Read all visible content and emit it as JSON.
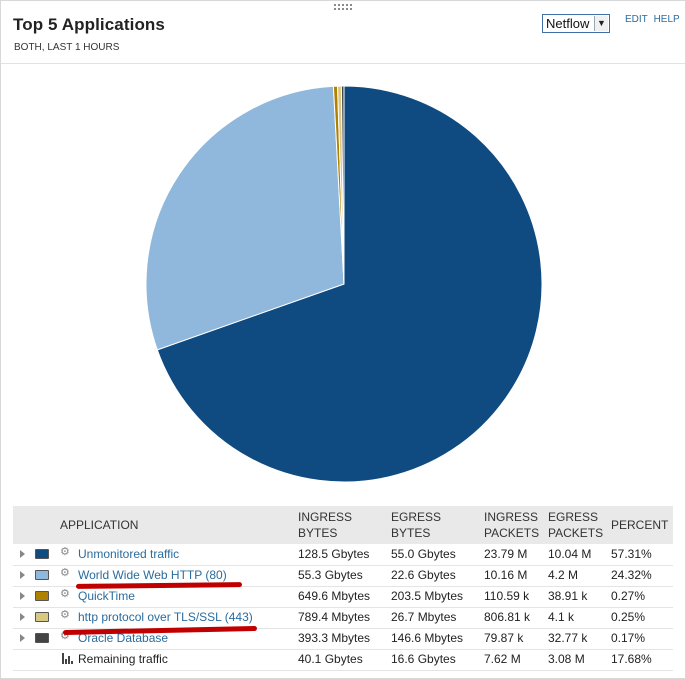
{
  "header": {
    "title": "Top 5 Applications",
    "subtitle": "BOTH, LAST 1 HOURS",
    "source_selected": "Netflow",
    "edit_label": "EDIT",
    "help_label": "HELP"
  },
  "table": {
    "columns": {
      "application": "APPLICATION",
      "ingress_bytes_1": "INGRESS",
      "ingress_bytes_2": "BYTES",
      "egress_bytes_1": "EGRESS",
      "egress_bytes_2": "BYTES",
      "ingress_packets_1": "INGRESS",
      "ingress_packets_2": "PACKETS",
      "egress_packets_1": "EGRESS",
      "egress_packets_2": "PACKETS",
      "percent": "PERCENT"
    },
    "rows": [
      {
        "name": "Unmonitored traffic",
        "color": "#0f4a80",
        "ingress_bytes": "128.5 Gbytes",
        "egress_bytes": "55.0 Gbytes",
        "ingress_packets": "23.79 M",
        "egress_packets": "10.04 M",
        "percent": "57.31%"
      },
      {
        "name": "World Wide Web HTTP (80)",
        "color": "#8fb8dc",
        "ingress_bytes": "55.3 Gbytes",
        "egress_bytes": "22.6 Gbytes",
        "ingress_packets": "10.16 M",
        "egress_packets": "4.2 M",
        "percent": "24.32%"
      },
      {
        "name": "QuickTime",
        "color": "#b08000",
        "ingress_bytes": "649.6 Mbytes",
        "egress_bytes": "203.5 Mbytes",
        "ingress_packets": "110.59 k",
        "egress_packets": "38.91 k",
        "percent": "0.27%"
      },
      {
        "name": "http protocol over TLS/SSL (443)",
        "color": "#d9c880",
        "ingress_bytes": "789.4 Mbytes",
        "egress_bytes": "26.7 Mbytes",
        "ingress_packets": "806.81 k",
        "egress_packets": "4.1 k",
        "percent": "0.25%"
      },
      {
        "name": "Oracle Database",
        "color": "#444444",
        "ingress_bytes": "393.3 Mbytes",
        "egress_bytes": "146.6 Mbytes",
        "ingress_packets": "79.87 k",
        "egress_packets": "32.77 k",
        "percent": "0.17%"
      }
    ],
    "remaining": {
      "name": "Remaining traffic",
      "ingress_bytes": "40.1 Gbytes",
      "egress_bytes": "16.6 Gbytes",
      "ingress_packets": "7.62 M",
      "egress_packets": "3.08 M",
      "percent": "17.68%"
    }
  },
  "chart_data": {
    "type": "pie",
    "slices": [
      {
        "label": "Unmonitored traffic",
        "value": 69.5,
        "color": "#0f4a80"
      },
      {
        "label": "World Wide Web HTTP (80)",
        "value": 29.5,
        "color": "#8fb8dc"
      },
      {
        "label": "QuickTime",
        "value": 0.33,
        "color": "#b08000"
      },
      {
        "label": "http protocol over TLS/SSL (443)",
        "value": 0.31,
        "color": "#d9c880"
      },
      {
        "label": "Oracle Database",
        "value": 0.21,
        "color": "#444444"
      }
    ]
  },
  "icons": {
    "gear": "gear-icon",
    "remaining": "bar-chart-icon",
    "expander": "expand-arrow-icon"
  }
}
